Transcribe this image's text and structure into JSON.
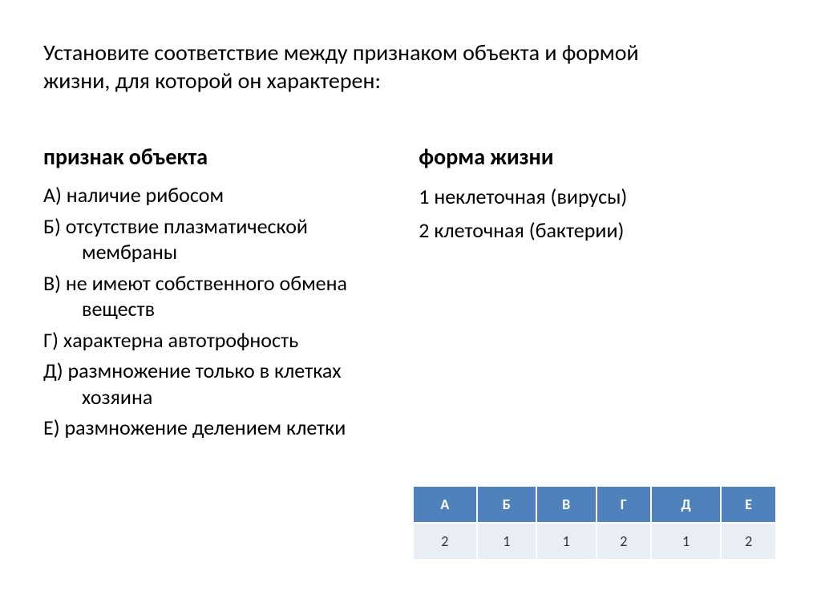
{
  "prompt": "Установите соответствие между признаком объекта и формой жизни, для которой он характерен:",
  "left": {
    "title": "признак объекта",
    "items": [
      "А) наличие рибосом",
      "Б) отсутствие плазматической мембраны",
      "В) не имеют собственного обмена веществ",
      "Г) характерна автотрофность",
      "Д) размножение только в клетках хозяина",
      "Е) размножение делением клетки"
    ]
  },
  "right": {
    "title": "форма жизни",
    "options": [
      "1 неклеточная (вирусы)",
      "2  клеточная (бактерии)"
    ]
  },
  "table": {
    "headers": [
      "А",
      "Б",
      "В",
      "Г",
      "Д",
      "Е"
    ],
    "values": [
      "2",
      "1",
      "1",
      "2",
      "1",
      "2"
    ],
    "header_bg": "#4f81bd",
    "header_color": "#ffffff",
    "value_bg": "#e9edf4",
    "border_color": "#ffffff"
  }
}
